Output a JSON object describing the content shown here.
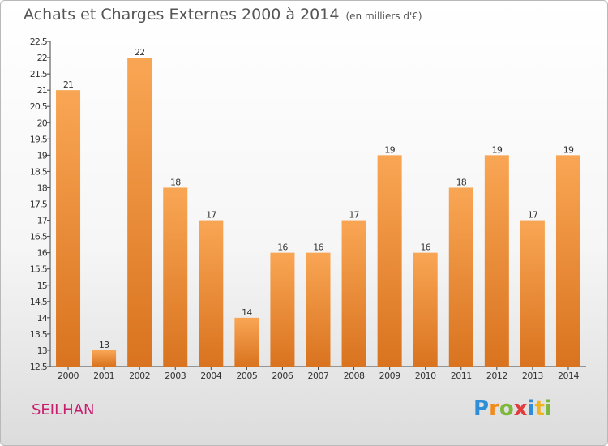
{
  "header": {
    "title": "Achats et Charges Externes 2000 à 2014",
    "subtitle": "(en milliers d'€)"
  },
  "commune": "SEILHAN",
  "logo": {
    "letters": [
      "P",
      "r",
      "o",
      "x",
      "i",
      "t",
      "i"
    ],
    "colors": [
      "#2e8fd8",
      "#f08c1e",
      "#7cb93a",
      "#e23b3b",
      "#2e8fd8",
      "#f0b41e",
      "#7cb93a"
    ]
  },
  "chart_data": {
    "type": "bar",
    "categories": [
      "2000",
      "2001",
      "2002",
      "2003",
      "2004",
      "2005",
      "2006",
      "2007",
      "2008",
      "2009",
      "2010",
      "2011",
      "2012",
      "2013",
      "2014"
    ],
    "values": [
      21,
      13,
      22,
      18,
      17,
      14,
      16,
      16,
      17,
      19,
      16,
      18,
      19,
      17,
      19
    ],
    "data_labels": [
      "21",
      "13",
      "22",
      "18",
      "17",
      "14",
      "16",
      "16",
      "17",
      "19",
      "16",
      "18",
      "19",
      "17",
      "19"
    ],
    "title": "Achats et Charges Externes 2000 à 2014",
    "subtitle": "(en milliers d'€)",
    "ylim": [
      12.5,
      22.5
    ],
    "yticks": [
      "12.5",
      "13",
      "13.5",
      "14",
      "14.5",
      "15",
      "15.5",
      "16",
      "16.5",
      "17",
      "17.5",
      "18",
      "18.5",
      "19",
      "19.5",
      "20",
      "20.5",
      "21",
      "21.5",
      "22",
      "22.5"
    ],
    "grid": false,
    "legend": "none",
    "colors": {
      "bar_light": "#f9a654",
      "bar_dark": "#d9731f",
      "axis": "#444444"
    }
  }
}
